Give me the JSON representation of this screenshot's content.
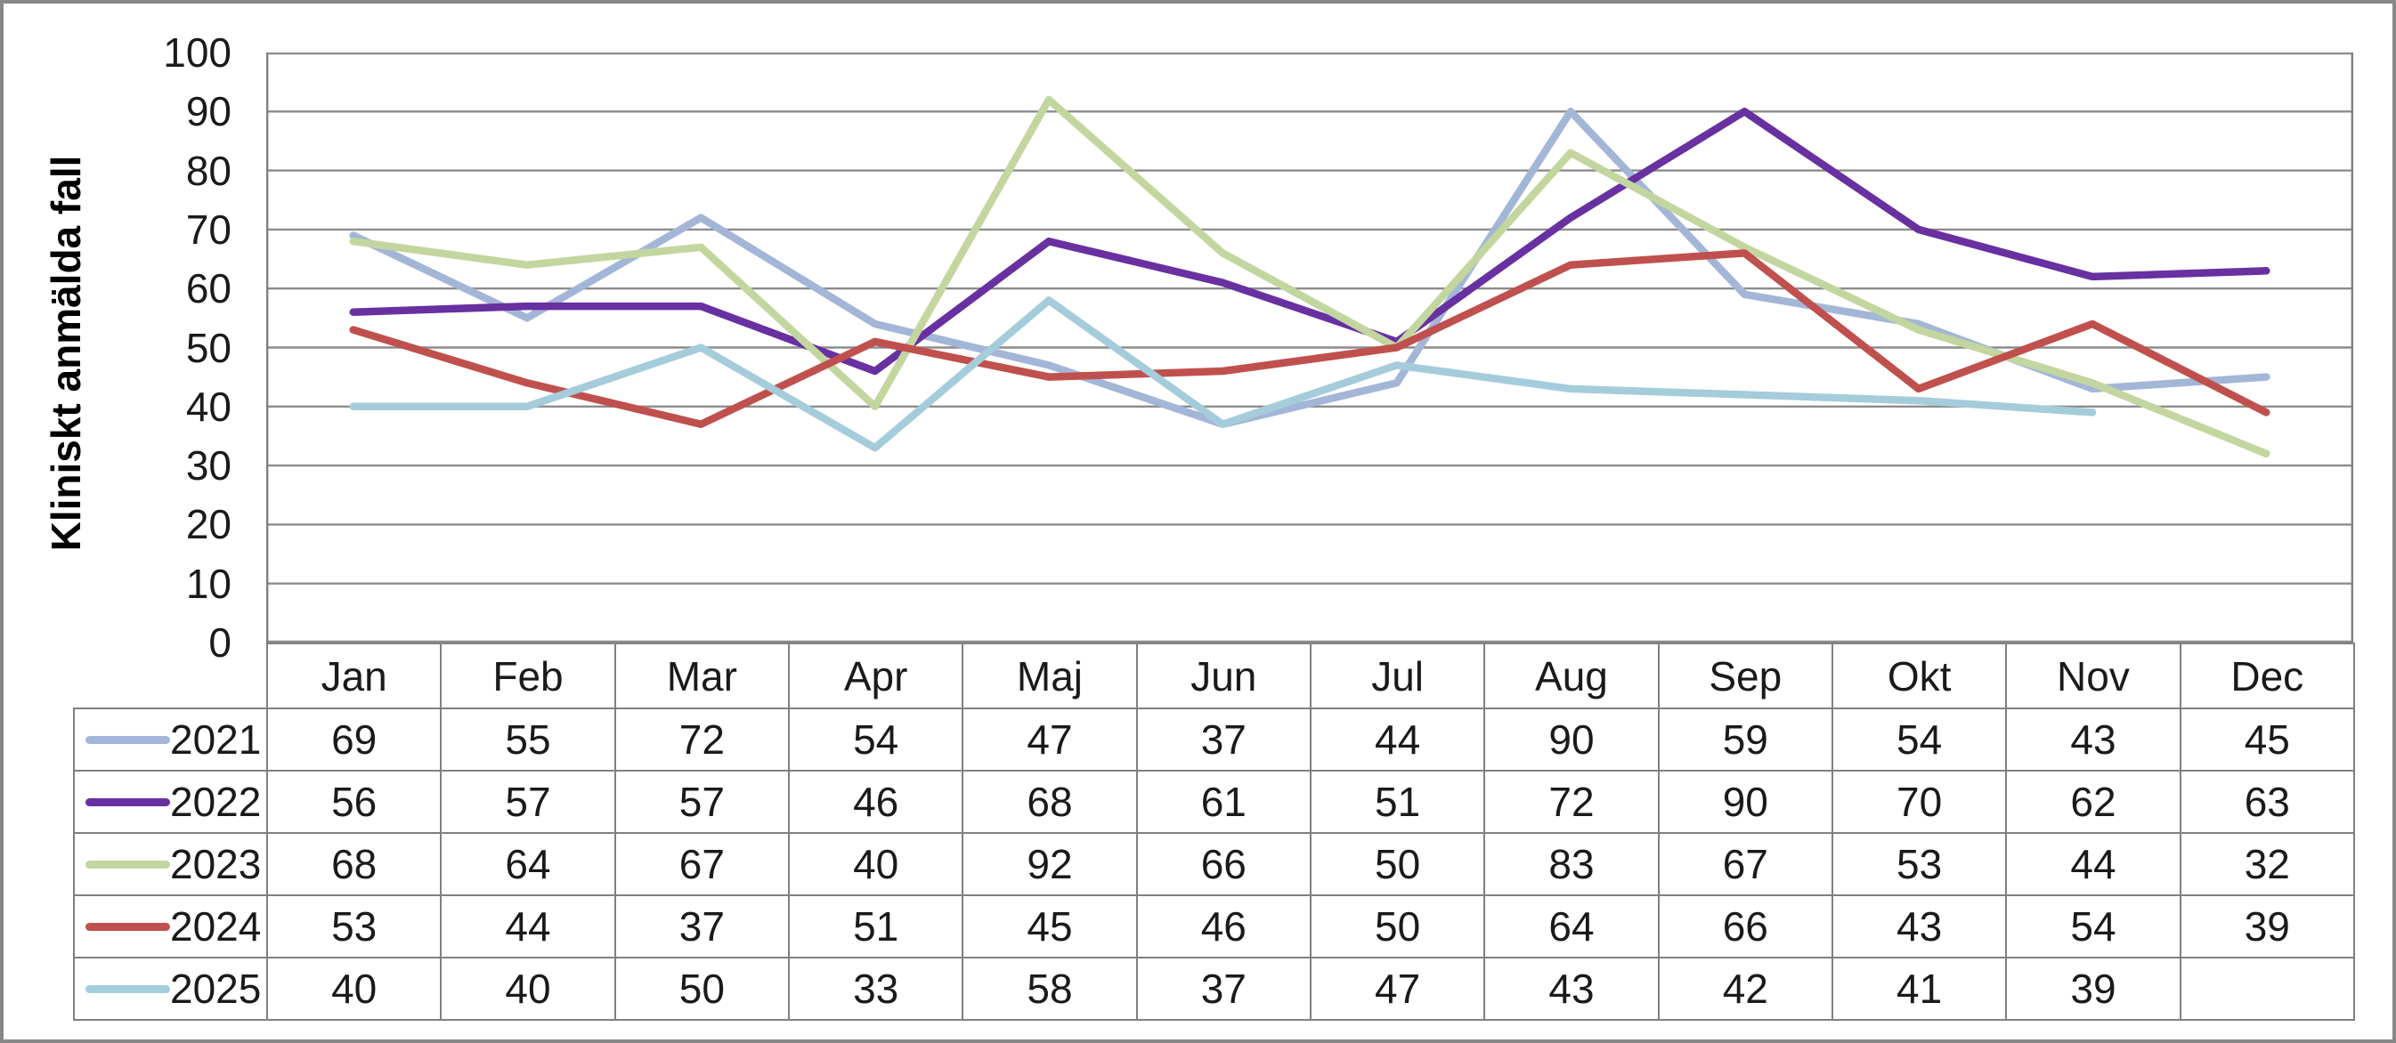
{
  "chart_data": {
    "type": "line",
    "title": "",
    "xlabel": "",
    "ylabel": "Kliniskt anmälda fall",
    "ylim": [
      0,
      100
    ],
    "y_tick_step": 10,
    "grid": true,
    "legend_position": "table-left",
    "categories": [
      "Jan",
      "Feb",
      "Mar",
      "Apr",
      "Maj",
      "Jun",
      "Jul",
      "Aug",
      "Sep",
      "Okt",
      "Nov",
      "Dec"
    ],
    "series": [
      {
        "name": "2021",
        "color": "#A4B6D7",
        "values": [
          69,
          55,
          72,
          54,
          47,
          37,
          44,
          90,
          59,
          54,
          43,
          45
        ]
      },
      {
        "name": "2022",
        "color": "#6830A0",
        "values": [
          56,
          57,
          57,
          46,
          68,
          61,
          51,
          72,
          90,
          70,
          62,
          63
        ]
      },
      {
        "name": "2023",
        "color": "#C3D69F",
        "values": [
          68,
          64,
          67,
          40,
          92,
          66,
          50,
          83,
          67,
          53,
          44,
          32
        ]
      },
      {
        "name": "2024",
        "color": "#C0504D",
        "values": [
          53,
          44,
          37,
          51,
          45,
          46,
          50,
          64,
          66,
          43,
          54,
          39
        ]
      },
      {
        "name": "2025",
        "color": "#A5CCDB",
        "values": [
          40,
          40,
          50,
          33,
          58,
          37,
          47,
          43,
          42,
          41,
          39,
          null
        ]
      }
    ],
    "y_ticks": [
      100,
      90,
      80,
      70,
      60,
      50,
      40,
      30,
      20,
      10,
      0
    ],
    "gridline_color": "#8C8C8C",
    "axis_line_color": "#808080",
    "table_border_color": "#808080",
    "frame_border_color": "#878787",
    "line_width": 8.5
  }
}
